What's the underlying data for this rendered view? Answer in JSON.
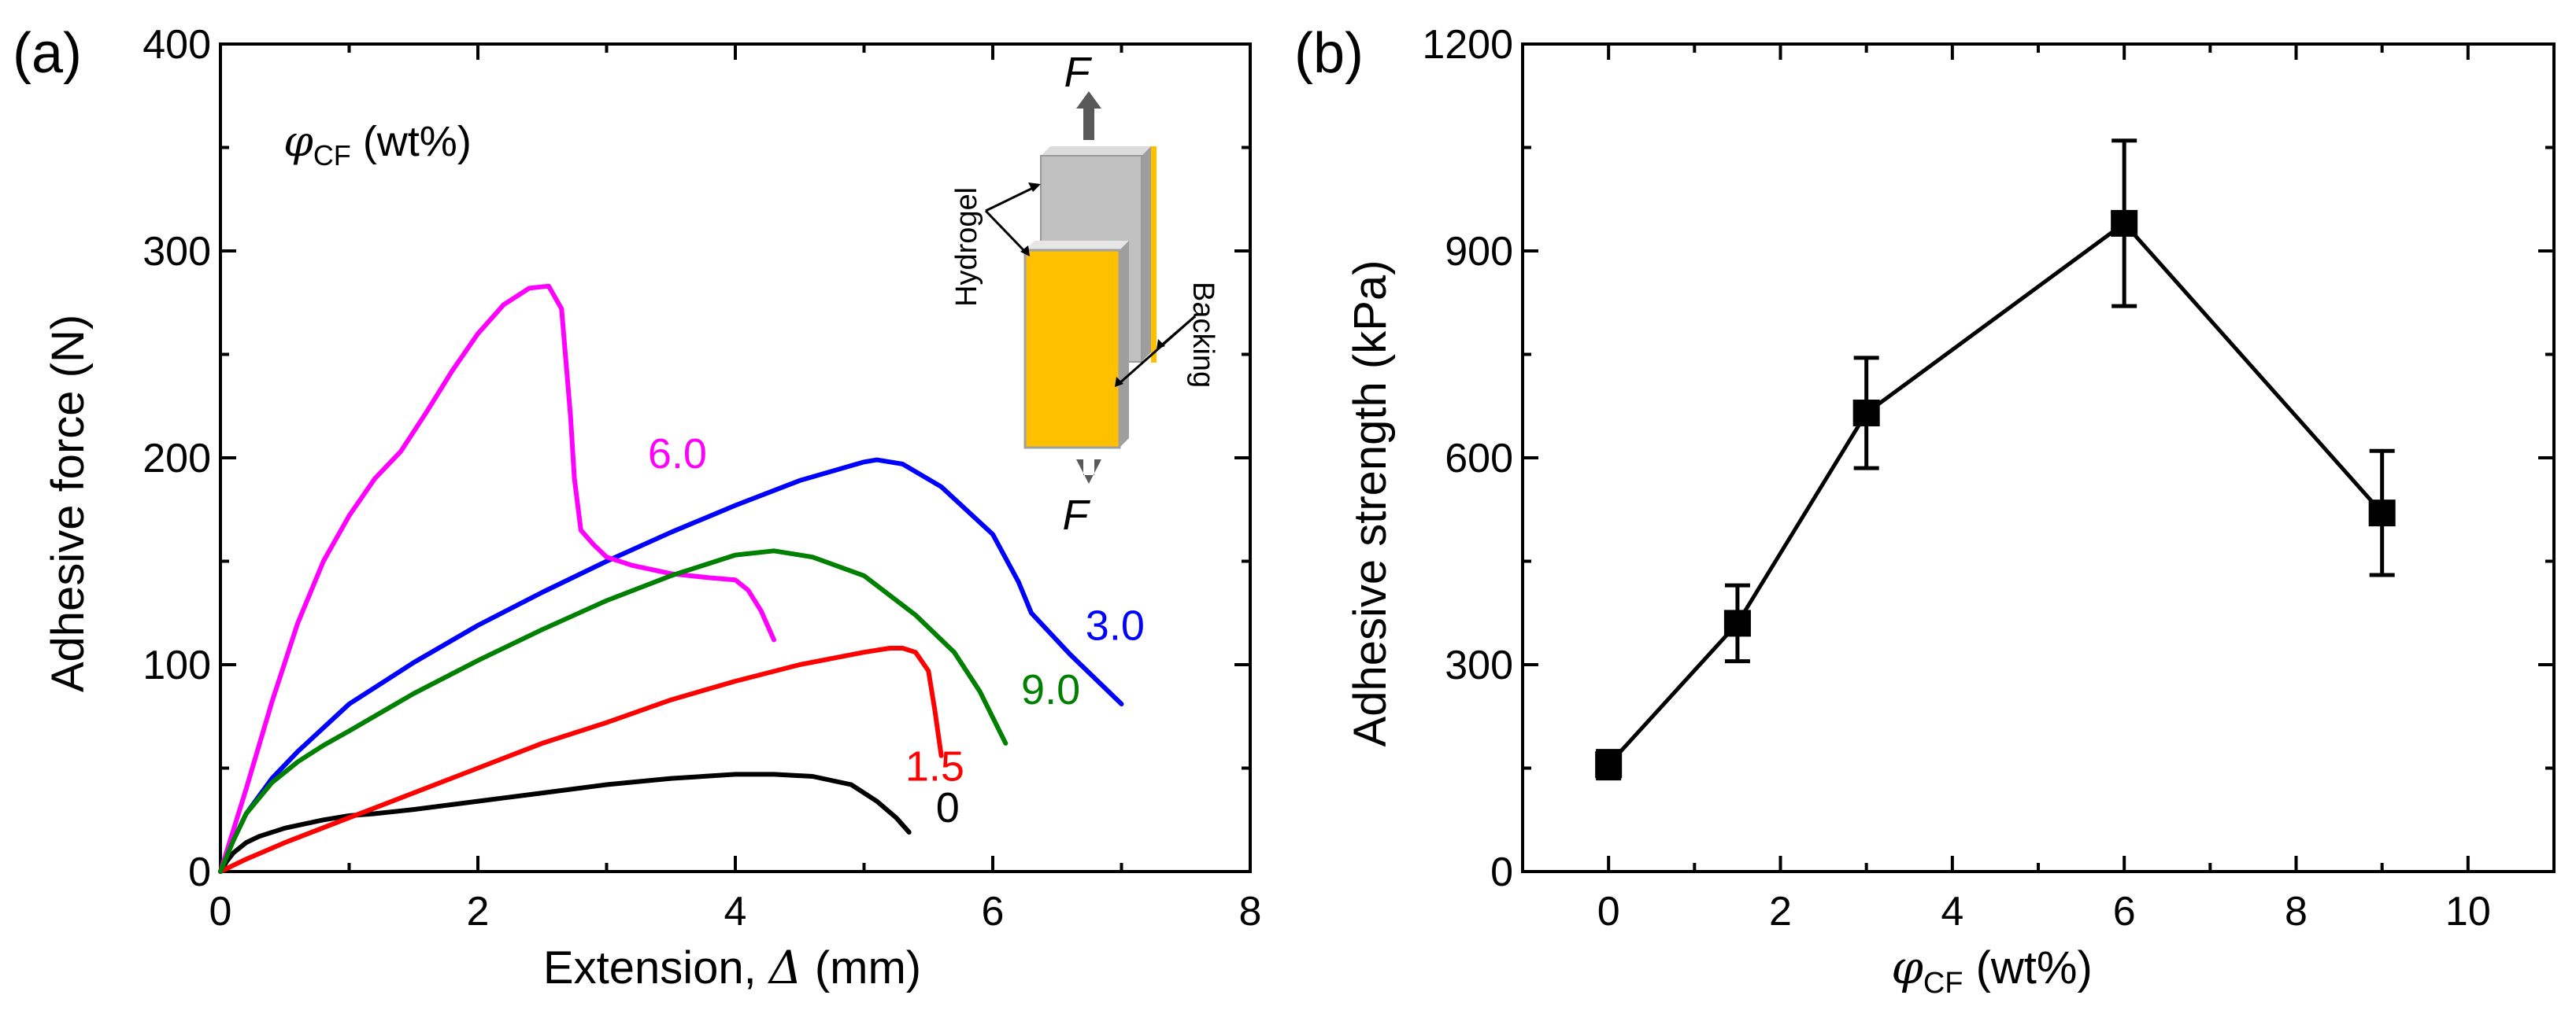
{
  "chart_data": [
    {
      "type": "line",
      "panel_label": "(a)",
      "xlabel": "Extension, ",
      "xlabel_symbol": "Δ",
      "xlabel_unit": " (mm)",
      "ylabel": "Adhesive force (N)",
      "xlim": [
        0,
        8
      ],
      "ylim": [
        0,
        400
      ],
      "xticks": [
        0,
        2,
        4,
        6,
        8
      ],
      "yticks": [
        0,
        100,
        200,
        300,
        400
      ],
      "legend_title_symbol": "φ",
      "legend_title_sub": "CF",
      "legend_title_unit": " (wt%)",
      "inset": {
        "force_top": "F",
        "force_bottom": "F",
        "hydrogel": "Hydrogel",
        "backing": "Backing"
      },
      "series": [
        {
          "name": "0",
          "color": "#000000",
          "x": [
            0,
            0.05,
            0.1,
            0.2,
            0.3,
            0.5,
            0.8,
            1.0,
            1.2,
            1.5,
            2.0,
            2.5,
            3.0,
            3.5,
            4.0,
            4.3,
            4.6,
            4.9,
            5.1,
            5.25,
            5.35
          ],
          "y": [
            0,
            5,
            9,
            14,
            17,
            21,
            25,
            27,
            28,
            30,
            34,
            38,
            42,
            45,
            47,
            47,
            46,
            42,
            34,
            26,
            19
          ]
        },
        {
          "name": "1.5",
          "color": "#ff0000",
          "x": [
            0,
            0.2,
            0.5,
            1.0,
            1.5,
            2.0,
            2.5,
            3.0,
            3.5,
            4.0,
            4.5,
            5.0,
            5.2,
            5.3,
            5.4,
            5.5,
            5.55,
            5.6
          ],
          "y": [
            0,
            6,
            14,
            26,
            38,
            50,
            62,
            72,
            83,
            92,
            100,
            106,
            108,
            108,
            106,
            97,
            78,
            56
          ]
        },
        {
          "name": "3.0",
          "color": "#0000ff",
          "x": [
            0,
            0.05,
            0.1,
            0.2,
            0.4,
            0.6,
            1.0,
            1.5,
            2.0,
            2.5,
            3.0,
            3.5,
            4.0,
            4.5,
            5.0,
            5.1,
            5.3,
            5.6,
            6.0,
            6.2,
            6.3,
            6.6,
            7.0
          ],
          "y": [
            0,
            8,
            15,
            28,
            45,
            58,
            81,
            101,
            119,
            135,
            150,
            164,
            177,
            189,
            198,
            199,
            197,
            186,
            163,
            140,
            125,
            105,
            81
          ]
        },
        {
          "name": "6.0",
          "color": "#ff00ff",
          "x": [
            0,
            0.1,
            0.2,
            0.4,
            0.6,
            0.8,
            1.0,
            1.2,
            1.4,
            1.6,
            1.8,
            2.0,
            2.2,
            2.4,
            2.55,
            2.65,
            2.72,
            2.75,
            2.8,
            2.9,
            3.0,
            3.2,
            3.5,
            3.8,
            4.0,
            4.1,
            4.2,
            4.3
          ],
          "y": [
            0,
            20,
            40,
            82,
            120,
            150,
            172,
            190,
            203,
            222,
            242,
            260,
            274,
            282,
            283,
            272,
            220,
            190,
            165,
            158,
            152,
            148,
            144,
            142,
            141,
            136,
            126,
            112
          ]
        },
        {
          "name": "9.0",
          "color": "#008000",
          "x": [
            0,
            0.1,
            0.2,
            0.4,
            0.6,
            0.8,
            1.0,
            1.5,
            2.0,
            2.5,
            3.0,
            3.5,
            4.0,
            4.3,
            4.6,
            5.0,
            5.4,
            5.7,
            5.9,
            6.1
          ],
          "y": [
            0,
            15,
            28,
            43,
            53,
            61,
            68,
            86,
            102,
            117,
            131,
            143,
            153,
            155,
            152,
            143,
            124,
            106,
            87,
            62
          ]
        }
      ],
      "curve_labels": [
        {
          "text": "6.0",
          "color": "#ff00ff",
          "x": 3.55,
          "y": 195
        },
        {
          "text": "3.0",
          "color": "#0000ff",
          "x": 6.95,
          "y": 112
        },
        {
          "text": "9.0",
          "color": "#008000",
          "x": 6.45,
          "y": 81
        },
        {
          "text": "1.5",
          "color": "#ff0000",
          "x": 5.55,
          "y": 44
        },
        {
          "text": "0",
          "color": "#000000",
          "x": 5.65,
          "y": 24
        }
      ]
    },
    {
      "type": "line",
      "panel_label": "(b)",
      "xlabel_symbol": "φ",
      "xlabel_sub": "CF",
      "xlabel_unit": " (wt%)",
      "ylabel": "Adhesive strength (kPa)",
      "xlim": [
        -1,
        11
      ],
      "ylim": [
        0,
        1200
      ],
      "xticks": [
        0,
        2,
        4,
        6,
        8,
        10
      ],
      "yticks": [
        0,
        300,
        600,
        900,
        1200
      ],
      "series": [
        {
          "name": "adhesive strength",
          "color": "#000000",
          "marker": "square",
          "x": [
            0,
            1.5,
            3,
            6,
            9
          ],
          "y": [
            155,
            360,
            665,
            940,
            520
          ],
          "error": [
            20,
            55,
            80,
            120,
            90
          ]
        }
      ]
    }
  ]
}
